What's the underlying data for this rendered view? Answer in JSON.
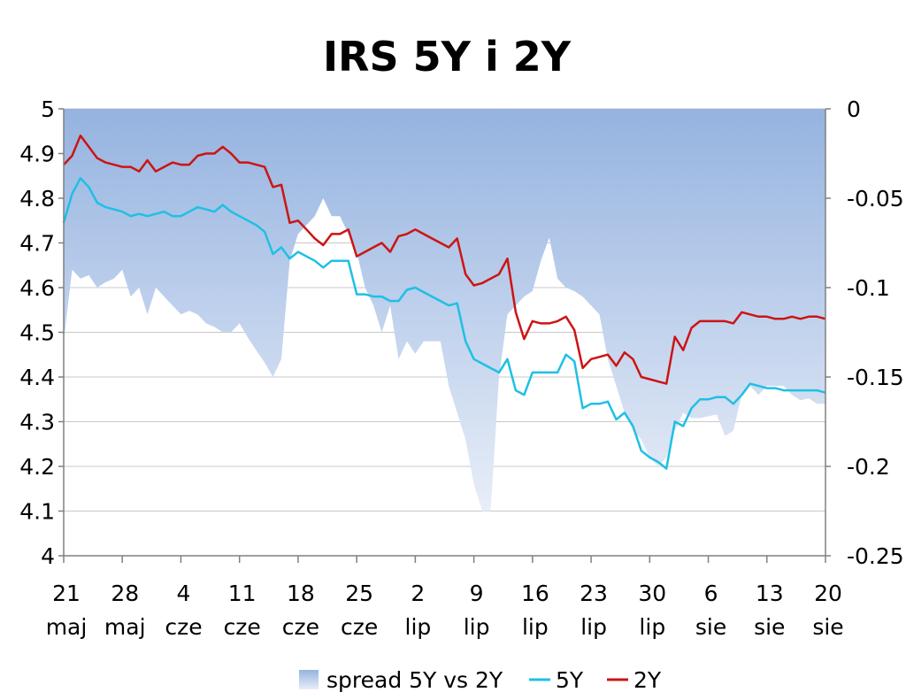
{
  "chart_data": {
    "type": "line",
    "title": "IRS 5Y i 2Y",
    "x_ticks": [
      {
        "day": "21",
        "month": "maj"
      },
      {
        "day": "28",
        "month": "maj"
      },
      {
        "day": "4",
        "month": "cze"
      },
      {
        "day": "11",
        "month": "cze"
      },
      {
        "day": "18",
        "month": "cze"
      },
      {
        "day": "25",
        "month": "cze"
      },
      {
        "day": "2",
        "month": "lip"
      },
      {
        "day": "9",
        "month": "lip"
      },
      {
        "day": "16",
        "month": "lip"
      },
      {
        "day": "23",
        "month": "lip"
      },
      {
        "day": "30",
        "month": "lip"
      },
      {
        "day": "6",
        "month": "sie"
      },
      {
        "day": "13",
        "month": "sie"
      },
      {
        "day": "20",
        "month": "sie"
      }
    ],
    "x_range_days": [
      21,
      112
    ],
    "y_left": {
      "min": 4,
      "max": 5,
      "ticks": [
        "5",
        "4.9",
        "4.8",
        "4.7",
        "4.6",
        "4.5",
        "4.4",
        "4.3",
        "4.2",
        "4.1",
        "4"
      ]
    },
    "y_right": {
      "min": -0.25,
      "max": 0,
      "ticks": [
        "0",
        "-0.05",
        "-0.1",
        "-0.15",
        "-0.2",
        "-0.25"
      ]
    },
    "grid": true,
    "legend_position": "bottom",
    "legend": [
      "spread 5Y vs 2Y",
      "5Y",
      "2Y"
    ],
    "colors": {
      "spread_top": "#95b3e0",
      "spread_bottom": "#e8eef8",
      "5Y": "#1ec0e4",
      "2Y": "#cc1414",
      "grid": "#c8c8c8",
      "axis": "#808080"
    },
    "series": [
      {
        "name": "spread 5Y vs 2Y",
        "axis": "right",
        "kind": "area",
        "x": [
          21,
          22,
          23,
          24,
          25,
          26,
          27,
          28,
          29,
          30,
          31,
          32,
          33,
          34,
          35,
          36,
          37,
          38,
          39,
          40,
          41,
          42,
          43,
          44,
          45,
          46,
          47,
          48,
          49,
          50,
          51,
          52,
          53,
          54,
          55,
          56,
          57,
          58,
          59,
          60,
          61,
          62,
          63,
          64,
          65,
          66,
          67,
          68,
          69,
          70,
          71,
          72,
          73,
          74,
          75,
          76,
          77,
          78,
          79,
          80,
          81,
          82,
          83,
          84,
          85,
          86,
          87,
          88,
          89,
          90,
          91,
          92,
          93,
          94,
          95,
          96,
          97,
          98,
          99,
          100,
          101,
          102,
          103,
          104,
          105,
          106,
          107,
          108,
          109,
          110,
          111,
          112
        ],
        "values": [
          -0.13,
          -0.09,
          -0.095,
          -0.093,
          -0.1,
          -0.097,
          -0.095,
          -0.09,
          -0.105,
          -0.1,
          -0.115,
          -0.1,
          -0.105,
          -0.11,
          -0.115,
          -0.113,
          -0.115,
          -0.12,
          -0.122,
          -0.125,
          -0.125,
          -0.12,
          -0.128,
          -0.135,
          -0.142,
          -0.15,
          -0.14,
          -0.085,
          -0.07,
          -0.065,
          -0.06,
          -0.05,
          -0.06,
          -0.06,
          -0.07,
          -0.08,
          -0.1,
          -0.11,
          -0.125,
          -0.11,
          -0.14,
          -0.13,
          -0.137,
          -0.13,
          -0.13,
          -0.13,
          -0.155,
          -0.17,
          -0.185,
          -0.21,
          -0.225,
          -0.225,
          -0.15,
          -0.115,
          -0.11,
          -0.105,
          -0.102,
          -0.085,
          -0.072,
          -0.095,
          -0.1,
          -0.102,
          -0.105,
          -0.11,
          -0.115,
          -0.14,
          -0.155,
          -0.17,
          -0.18,
          -0.185,
          -0.195,
          -0.2,
          -0.195,
          -0.18,
          -0.17,
          -0.173,
          -0.173,
          -0.172,
          -0.171,
          -0.183,
          -0.18,
          -0.16,
          -0.155,
          -0.16,
          -0.155,
          -0.155,
          -0.155,
          -0.16,
          -0.163,
          -0.162,
          -0.165,
          -0.165
        ]
      },
      {
        "name": "5Y",
        "axis": "left",
        "kind": "line",
        "x": [
          21,
          22,
          23,
          24,
          25,
          26,
          27,
          28,
          29,
          30,
          31,
          32,
          33,
          34,
          35,
          36,
          37,
          38,
          39,
          40,
          41,
          42,
          43,
          44,
          45,
          46,
          47,
          48,
          49,
          50,
          51,
          52,
          53,
          54,
          55,
          56,
          57,
          58,
          59,
          60,
          61,
          62,
          63,
          64,
          65,
          66,
          67,
          68,
          69,
          70,
          71,
          72,
          73,
          74,
          75,
          76,
          77,
          78,
          79,
          80,
          81,
          82,
          83,
          84,
          85,
          86,
          87,
          88,
          89,
          90,
          91,
          92,
          93,
          94,
          95,
          96,
          97,
          98,
          99,
          100,
          101,
          102,
          103,
          104,
          105,
          106,
          107,
          108,
          109,
          110,
          111,
          112
        ],
        "values": [
          4.745,
          4.81,
          4.845,
          4.825,
          4.79,
          4.78,
          4.775,
          4.77,
          4.76,
          4.765,
          4.76,
          4.765,
          4.77,
          4.76,
          4.76,
          4.77,
          4.78,
          4.775,
          4.77,
          4.785,
          4.77,
          4.76,
          4.75,
          4.74,
          4.725,
          4.675,
          4.69,
          4.665,
          4.68,
          4.67,
          4.66,
          4.645,
          4.66,
          4.66,
          4.66,
          4.585,
          4.585,
          4.58,
          4.58,
          4.57,
          4.57,
          4.595,
          4.6,
          4.59,
          4.58,
          4.57,
          4.56,
          4.565,
          4.48,
          4.44,
          4.43,
          4.42,
          4.41,
          4.44,
          4.37,
          4.36,
          4.41,
          4.41,
          4.41,
          4.41,
          4.45,
          4.435,
          4.33,
          4.34,
          4.34,
          4.345,
          4.305,
          4.32,
          4.29,
          4.235,
          4.22,
          4.21,
          4.195,
          4.3,
          4.29,
          4.33,
          4.35,
          4.35,
          4.355,
          4.355,
          4.34,
          4.36,
          4.385,
          4.38,
          4.375,
          4.375,
          4.37,
          4.37,
          4.37,
          4.37,
          4.37,
          4.365
        ]
      },
      {
        "name": "2Y",
        "axis": "left",
        "kind": "line",
        "x": [
          21,
          22,
          23,
          24,
          25,
          26,
          27,
          28,
          29,
          30,
          31,
          32,
          33,
          34,
          35,
          36,
          37,
          38,
          39,
          40,
          41,
          42,
          43,
          44,
          45,
          46,
          47,
          48,
          49,
          50,
          51,
          52,
          53,
          54,
          55,
          56,
          57,
          58,
          59,
          60,
          61,
          62,
          63,
          64,
          65,
          66,
          67,
          68,
          69,
          70,
          71,
          72,
          73,
          74,
          75,
          76,
          77,
          78,
          79,
          80,
          81,
          82,
          83,
          84,
          85,
          86,
          87,
          88,
          89,
          90,
          91,
          92,
          93,
          94,
          95,
          96,
          97,
          98,
          99,
          100,
          101,
          102,
          103,
          104,
          105,
          106,
          107,
          108,
          109,
          110,
          111,
          112
        ],
        "values": [
          4.875,
          4.895,
          4.94,
          4.915,
          4.89,
          4.88,
          4.875,
          4.87,
          4.87,
          4.86,
          4.885,
          4.86,
          4.87,
          4.88,
          4.875,
          4.875,
          4.895,
          4.9,
          4.9,
          4.915,
          4.9,
          4.88,
          4.88,
          4.875,
          4.87,
          4.825,
          4.83,
          4.745,
          4.75,
          4.73,
          4.71,
          4.695,
          4.72,
          4.72,
          4.73,
          4.67,
          4.68,
          4.69,
          4.7,
          4.68,
          4.715,
          4.72,
          4.73,
          4.72,
          4.71,
          4.7,
          4.69,
          4.71,
          4.63,
          4.605,
          4.61,
          4.62,
          4.63,
          4.665,
          4.545,
          4.485,
          4.525,
          4.52,
          4.52,
          4.525,
          4.535,
          4.505,
          4.42,
          4.44,
          4.445,
          4.45,
          4.425,
          4.455,
          4.44,
          4.4,
          4.395,
          4.39,
          4.385,
          4.49,
          4.46,
          4.51,
          4.525,
          4.525,
          4.525,
          4.525,
          4.52,
          4.545,
          4.54,
          4.535,
          4.535,
          4.53,
          4.53,
          4.535,
          4.53,
          4.535,
          4.535,
          4.53
        ]
      }
    ]
  }
}
